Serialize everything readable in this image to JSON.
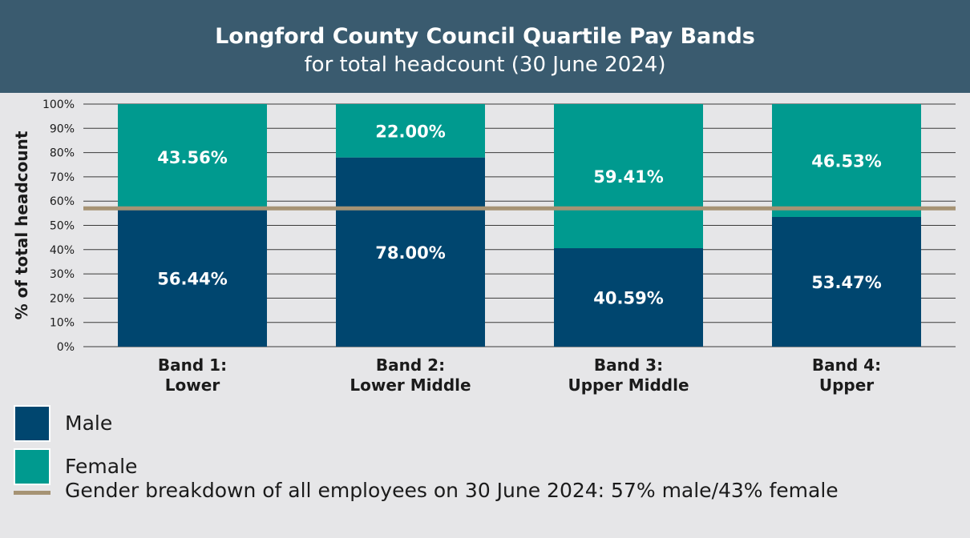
{
  "header": {
    "title": "Longford County Council Quartile Pay Bands",
    "subtitle": "for total headcount (30 June 2024)"
  },
  "colors": {
    "male": "#00466f",
    "female": "#009a8f",
    "reference": "#a69374",
    "header": "#3a5b6f"
  },
  "legend": {
    "male_label": "Male",
    "female_label": "Female",
    "line_label": "Gender breakdown of all employees on 30 June 2024: 57% male/43% female"
  },
  "chart_data": {
    "type": "bar",
    "stacked": true,
    "ylabel": "% of total headcount",
    "ylim": [
      0,
      100
    ],
    "yticks": [
      "0%",
      "10%",
      "20%",
      "30%",
      "40%",
      "50%",
      "60%",
      "70%",
      "80%",
      "90%",
      "100%"
    ],
    "grid": true,
    "categories": [
      [
        "Band 1:",
        "Lower"
      ],
      [
        "Band 2:",
        "Lower Middle"
      ],
      [
        "Band 3:",
        "Upper Middle"
      ],
      [
        "Band 4:",
        "Upper"
      ]
    ],
    "series": [
      {
        "name": "Male",
        "values": [
          56.44,
          78.0,
          40.59,
          53.47
        ],
        "labels": [
          "56.44%",
          "78.00%",
          "40.59%",
          "53.47%"
        ]
      },
      {
        "name": "Female",
        "values": [
          43.56,
          22.0,
          59.41,
          46.53
        ],
        "labels": [
          "43.56%",
          "22.00%",
          "59.41%",
          "46.53%"
        ]
      }
    ],
    "reference_line": {
      "value": 57
    }
  }
}
